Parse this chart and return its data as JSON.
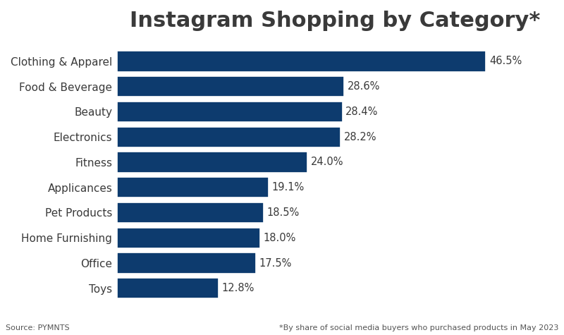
{
  "title": "Instagram Shopping by Category*",
  "categories": [
    "Clothing & Apparel",
    "Food & Beverage",
    "Beauty",
    "Electronics",
    "Fitness",
    "Applicances",
    "Pet Products",
    "Home Furnishing",
    "Office",
    "Toys"
  ],
  "values": [
    46.5,
    28.6,
    28.4,
    28.2,
    24.0,
    19.1,
    18.5,
    18.0,
    17.5,
    12.8
  ],
  "bar_color": "#0d3b6e",
  "label_color": "#3a3a3a",
  "background_color": "#ffffff",
  "title_fontsize": 22,
  "title_fontweight": "bold",
  "category_fontsize": 11,
  "value_fontsize": 10.5,
  "source_text": "Source: PYMNTS",
  "footnote_text": "*By share of social media buyers who purchased products in May 2023",
  "xlim": [
    0,
    55
  ],
  "bar_height": 0.82
}
